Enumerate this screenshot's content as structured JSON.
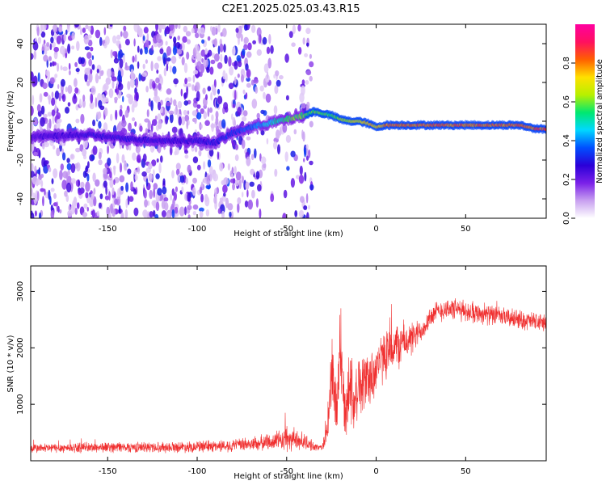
{
  "title": "C2E1.2025.025.03.43.R15",
  "chart_data": [
    {
      "type": "heatmap",
      "xlabel": "Height of straight line (km)",
      "ylabel": "Frequency (Hz)",
      "xlim": [
        -193,
        95
      ],
      "ylim": [
        -50,
        50
      ],
      "xticks": [
        -150,
        -100,
        -50,
        0,
        50
      ],
      "xtick_labels": [
        "-150",
        "-100",
        "-50",
        "0",
        "50"
      ],
      "yticks": [
        -40,
        -20,
        0,
        20,
        40
      ],
      "ytick_labels": [
        "-40",
        "-20",
        "0",
        "20",
        "40"
      ],
      "colorbar": {
        "label": "Normalized spectral amplitude",
        "range": [
          0,
          1
        ],
        "ticks": [
          0.0,
          0.2,
          0.4,
          0.6,
          0.8
        ],
        "tick_labels": [
          "0.0",
          "0.2",
          "0.4",
          "0.6",
          "0.8"
        ],
        "colors": [
          "#ffffff",
          "#c8a0f0",
          "#7a20e8",
          "#2a00d8",
          "#0050ff",
          "#00d8ff",
          "#00e870",
          "#b8f000",
          "#ffe000",
          "#ff6000",
          "#ff1060",
          "#ff00a0"
        ]
      },
      "ridge": {
        "x": [
          -193,
          -160,
          -140,
          -120,
          -100,
          -90,
          -80,
          -70,
          -60,
          -50,
          -40,
          -35,
          -30,
          -25,
          -20,
          -15,
          -10,
          -5,
          0,
          5,
          10,
          20,
          30,
          40,
          50,
          60,
          70,
          80,
          90,
          95
        ],
        "y": [
          -8,
          -7,
          -9,
          -10,
          -10,
          -11,
          -6,
          -3,
          -1,
          1,
          3,
          5,
          4,
          3,
          1,
          0,
          0,
          -1,
          -3,
          -2,
          -2,
          -2,
          -2,
          -2,
          -2,
          -2,
          -2,
          -2,
          -4,
          -4
        ],
        "amplitude": [
          0.25,
          0.3,
          0.3,
          0.3,
          0.3,
          0.32,
          0.35,
          0.4,
          0.5,
          0.6,
          0.62,
          0.65,
          0.62,
          0.6,
          0.66,
          0.72,
          0.75,
          0.8,
          0.78,
          0.85,
          0.88,
          0.88,
          0.88,
          0.88,
          0.88,
          0.88,
          0.88,
          0.88,
          0.9,
          0.9
        ]
      }
    },
    {
      "type": "line",
      "xlabel": "Height of straight line (km)",
      "ylabel": "SNR (10 * v/v)",
      "xlim": [
        -193,
        95
      ],
      "ylim": [
        0,
        3450
      ],
      "xticks": [
        -150,
        -100,
        -50,
        0,
        50
      ],
      "xtick_labels": [
        "-150",
        "-100",
        "-50",
        "0",
        "50"
      ],
      "yticks": [
        1000,
        2000,
        3000
      ],
      "ytick_labels": [
        "1000",
        "2000",
        "3000"
      ],
      "color": "#f03030",
      "envelope": {
        "x": [
          -193,
          -170,
          -150,
          -120,
          -100,
          -80,
          -65,
          -55,
          -50,
          -45,
          -40,
          -35,
          -30,
          -27,
          -25,
          -22,
          -20,
          -17,
          -15,
          -12,
          -10,
          -7,
          -5,
          -2,
          0,
          5,
          10,
          15,
          20,
          25,
          30,
          35,
          40,
          50,
          60,
          70,
          80,
          90,
          95
        ],
        "y": [
          220,
          230,
          240,
          240,
          250,
          270,
          310,
          360,
          380,
          370,
          340,
          250,
          230,
          700,
          1500,
          900,
          2000,
          700,
          1600,
          900,
          1400,
          1350,
          1500,
          1450,
          1700,
          1850,
          2000,
          2100,
          2150,
          2300,
          2550,
          2650,
          2700,
          2650,
          2600,
          2550,
          2500,
          2450,
          2450
        ],
        "noise": [
          100,
          100,
          110,
          110,
          120,
          130,
          160,
          200,
          260,
          220,
          180,
          90,
          60,
          500,
          900,
          600,
          1000,
          500,
          900,
          550,
          700,
          600,
          650,
          600,
          550,
          500,
          500,
          450,
          350,
          250,
          230,
          230,
          230,
          220,
          210,
          200,
          200,
          200,
          200
        ]
      }
    }
  ]
}
